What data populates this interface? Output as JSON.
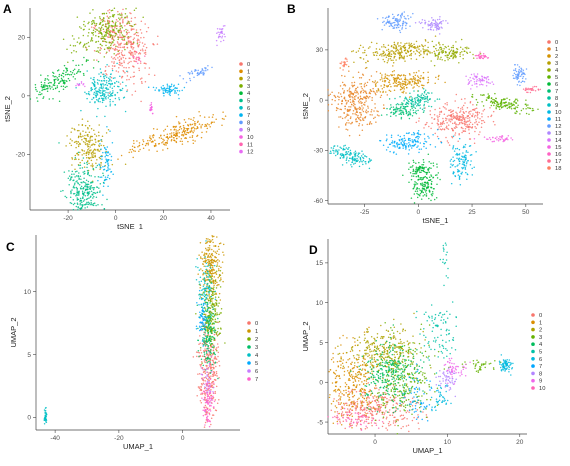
{
  "chart_data": [
    {
      "panel": "A",
      "type": "scatter",
      "xlabel": "tSNE_1",
      "ylabel": "tSNE_2",
      "xlim": [
        -36,
        48
      ],
      "ylim": [
        -39,
        30
      ],
      "xticks": [
        -20,
        0,
        20,
        40
      ],
      "yticks": [
        -20,
        0,
        20
      ],
      "legend_placement": "right",
      "series": [
        {
          "name": "0",
          "color": "#F8766D",
          "clusters": [
            {
              "x": 3,
              "y": 18,
              "sx": 5,
              "sy": 7,
              "n": 380,
              "rot": 30
            }
          ]
        },
        {
          "name": "1",
          "color": "#DE8C00",
          "clusters": [
            {
              "x": 25,
              "y": -13,
              "sx": 9,
              "sy": 1.8,
              "n": 250,
              "rot": 15
            }
          ]
        },
        {
          "name": "2",
          "color": "#B79F00",
          "clusters": [
            {
              "x": -12,
              "y": -17,
              "sx": 3.5,
              "sy": 4,
              "n": 190,
              "rot": 0
            }
          ]
        },
        {
          "name": "3",
          "color": "#7CAE00",
          "clusters": [
            {
              "x": -4,
              "y": 22,
              "sx": 7,
              "sy": 3.5,
              "n": 260,
              "rot": 20
            }
          ]
        },
        {
          "name": "4",
          "color": "#00BA38",
          "clusters": [
            {
              "x": -24,
              "y": 5,
              "sx": 6,
              "sy": 2,
              "n": 150,
              "rot": 25
            }
          ]
        },
        {
          "name": "5",
          "color": "#00C08B",
          "clusters": [
            {
              "x": -13,
              "y": -33,
              "sx": 3.5,
              "sy": 5,
              "n": 280,
              "rot": 0
            }
          ]
        },
        {
          "name": "6",
          "color": "#00BFC4",
          "clusters": [
            {
              "x": -5,
              "y": 2,
              "sx": 4,
              "sy": 3,
              "n": 200,
              "rot": 10
            }
          ]
        },
        {
          "name": "7",
          "color": "#00B4F0",
          "clusters": [
            {
              "x": 22,
              "y": 2,
              "sx": 3,
              "sy": 1,
              "n": 70,
              "rot": 0
            },
            {
              "x": -4,
              "y": -24,
              "sx": 1.5,
              "sy": 4,
              "n": 70,
              "rot": 0
            }
          ]
        },
        {
          "name": "8",
          "color": "#619CFF",
          "clusters": [
            {
              "x": 35,
              "y": 8,
              "sx": 3,
              "sy": 0.8,
              "n": 45,
              "rot": 15
            }
          ]
        },
        {
          "name": "9",
          "color": "#C77CFF",
          "clusters": [
            {
              "x": 44,
              "y": 21,
              "sx": 1,
              "sy": 2,
              "n": 30,
              "rot": 0
            }
          ]
        },
        {
          "name": "10",
          "color": "#F564E3",
          "clusters": [
            {
              "x": 15,
              "y": -4,
              "sx": 0.4,
              "sy": 1.2,
              "n": 20,
              "rot": 0
            }
          ]
        },
        {
          "name": "11",
          "color": "#FF64B0",
          "clusters": [
            {
              "x": 9,
              "y": 13,
              "sx": 1,
              "sy": 1,
              "n": 15,
              "rot": 0
            }
          ]
        },
        {
          "name": "12",
          "color": "#E76BF3",
          "clusters": [
            {
              "x": -15,
              "y": 4,
              "sx": 1,
              "sy": 0.6,
              "n": 12,
              "rot": 0
            }
          ]
        }
      ]
    },
    {
      "panel": "B",
      "type": "scatter",
      "xlabel": "tSNE_1",
      "ylabel": "tSNE_2",
      "xlim": [
        -42,
        58
      ],
      "ylim": [
        -62,
        55
      ],
      "xticks": [
        -25,
        0,
        25,
        50
      ],
      "yticks": [
        -60,
        -30,
        0,
        30
      ],
      "legend_placement": "right",
      "series": [
        {
          "name": "0",
          "color": "#F8766D",
          "clusters": [
            {
              "x": 18,
              "y": -12,
              "sx": 7,
              "sy": 5,
              "n": 280,
              "rot": 0
            }
          ]
        },
        {
          "name": "1",
          "color": "#E88526",
          "clusters": [
            {
              "x": -30,
              "y": -2,
              "sx": 6,
              "sy": 8,
              "n": 300,
              "rot": 0
            }
          ]
        },
        {
          "name": "2",
          "color": "#D39200",
          "clusters": [
            {
              "x": -8,
              "y": 11,
              "sx": 7,
              "sy": 3,
              "n": 200,
              "rot": 5
            }
          ]
        },
        {
          "name": "3",
          "color": "#B79F00",
          "clusters": [
            {
              "x": -8,
              "y": 29,
              "sx": 9,
              "sy": 3,
              "n": 230,
              "rot": 5
            }
          ]
        },
        {
          "name": "4",
          "color": "#93AA00",
          "clusters": [
            {
              "x": 15,
              "y": 28,
              "sx": 5,
              "sy": 3,
              "n": 120,
              "rot": 0
            }
          ]
        },
        {
          "name": "5",
          "color": "#5EB300",
          "clusters": [
            {
              "x": 40,
              "y": -2,
              "sx": 7,
              "sy": 2,
              "n": 150,
              "rot": -15
            }
          ]
        },
        {
          "name": "6",
          "color": "#00BA38",
          "clusters": [
            {
              "x": 3,
              "y": -52,
              "sx": 3,
              "sy": 4,
              "n": 120,
              "rot": 0
            },
            {
              "x": 1,
              "y": -42,
              "sx": 3,
              "sy": 3,
              "n": 90,
              "rot": 0
            }
          ]
        },
        {
          "name": "7",
          "color": "#00BF74",
          "clusters": [
            {
              "x": -8,
              "y": -6,
              "sx": 4,
              "sy": 2,
              "n": 90,
              "rot": 0
            }
          ]
        },
        {
          "name": "8",
          "color": "#00C19F",
          "clusters": [
            {
              "x": 0,
              "y": 0,
              "sx": 4,
              "sy": 2.5,
              "n": 110,
              "rot": 0
            }
          ]
        },
        {
          "name": "9",
          "color": "#00BFC4",
          "clusters": [
            {
              "x": -32,
              "y": -33,
              "sx": 6,
              "sy": 2,
              "n": 140,
              "rot": -25
            }
          ]
        },
        {
          "name": "10",
          "color": "#00B9E3",
          "clusters": [
            {
              "x": 20,
              "y": -36,
              "sx": 2.5,
              "sy": 5,
              "n": 110,
              "rot": 0
            }
          ]
        },
        {
          "name": "11",
          "color": "#00ADFA",
          "clusters": [
            {
              "x": -5,
              "y": -25,
              "sx": 6,
              "sy": 3,
              "n": 140,
              "rot": 10
            }
          ]
        },
        {
          "name": "12",
          "color": "#619CFF",
          "clusters": [
            {
              "x": -10,
              "y": 47,
              "sx": 3,
              "sy": 2.5,
              "n": 100,
              "rot": 0
            },
            {
              "x": 47,
              "y": 15,
              "sx": 1.5,
              "sy": 3,
              "n": 60,
              "rot": 0
            }
          ]
        },
        {
          "name": "13",
          "color": "#AE87FF",
          "clusters": [
            {
              "x": 7,
              "y": 45,
              "sx": 3,
              "sy": 2,
              "n": 70,
              "rot": 0
            }
          ]
        },
        {
          "name": "14",
          "color": "#DB72FB",
          "clusters": [
            {
              "x": 28,
              "y": 12,
              "sx": 2.5,
              "sy": 2,
              "n": 60,
              "rot": 0
            }
          ]
        },
        {
          "name": "15",
          "color": "#F564E3",
          "clusters": [
            {
              "x": 38,
              "y": -23,
              "sx": 3,
              "sy": 1,
              "n": 40,
              "rot": 0
            }
          ]
        },
        {
          "name": "16",
          "color": "#FF61C3",
          "clusters": [
            {
              "x": 30,
              "y": 26,
              "sx": 2,
              "sy": 1,
              "n": 30,
              "rot": 0
            }
          ]
        },
        {
          "name": "17",
          "color": "#FF6C91",
          "clusters": [
            {
              "x": 53,
              "y": 6,
              "sx": 2,
              "sy": 0.8,
              "n": 30,
              "rot": 0
            }
          ]
        },
        {
          "name": "18",
          "color": "#FF7F60",
          "clusters": [
            {
              "x": -34,
              "y": 22,
              "sx": 1,
              "sy": 2,
              "n": 20,
              "rot": 0
            }
          ]
        }
      ]
    },
    {
      "panel": "C",
      "type": "scatter",
      "xlabel": "UMAP_1",
      "ylabel": "UMAP_2",
      "xlim": [
        -46,
        18
      ],
      "ylim": [
        -1,
        14.5
      ],
      "xticks": [
        -40,
        -20,
        0
      ],
      "yticks": [
        0,
        5,
        10
      ],
      "legend_placement": "right",
      "series": [
        {
          "name": "0",
          "color": "#F8766D",
          "clusters": [
            {
              "x": 8,
              "y": 4,
              "sx": 1.5,
              "sy": 2,
              "n": 320,
              "rot": 0
            }
          ]
        },
        {
          "name": "1",
          "color": "#CD9600",
          "clusters": [
            {
              "x": 9,
              "y": 12,
              "sx": 1.6,
              "sy": 1.3,
              "n": 250,
              "rot": 0
            }
          ]
        },
        {
          "name": "2",
          "color": "#7CAE00",
          "clusters": [
            {
              "x": 9,
              "y": 8,
              "sx": 1.5,
              "sy": 1.5,
              "n": 220,
              "rot": 0
            }
          ]
        },
        {
          "name": "3",
          "color": "#00BE67",
          "clusters": [
            {
              "x": 8,
              "y": 6.5,
              "sx": 1.2,
              "sy": 1.5,
              "n": 150,
              "rot": 0
            }
          ]
        },
        {
          "name": "4",
          "color": "#00BFC4",
          "clusters": [
            {
              "x": 7,
              "y": 10,
              "sx": 1.2,
              "sy": 1.2,
              "n": 90,
              "rot": 0
            },
            {
              "x": -43,
              "y": 0.1,
              "sx": 0.25,
              "sy": 0.3,
              "n": 40,
              "rot": 0
            }
          ]
        },
        {
          "name": "5",
          "color": "#00A9FF",
          "clusters": [
            {
              "x": 6,
              "y": 8,
              "sx": 0.7,
              "sy": 1,
              "n": 60,
              "rot": 0
            }
          ]
        },
        {
          "name": "6",
          "color": "#C77CFF",
          "clusters": [
            {
              "x": 8,
              "y": 3,
              "sx": 1,
              "sy": 1,
              "n": 40,
              "rot": 0
            }
          ]
        },
        {
          "name": "7",
          "color": "#FF61CC",
          "clusters": [
            {
              "x": 8,
              "y": 1,
              "sx": 1,
              "sy": 1,
              "n": 80,
              "rot": 0
            }
          ]
        }
      ]
    },
    {
      "panel": "D",
      "type": "scatter",
      "xlabel": "UMAP_1",
      "ylabel": "UMAP_2",
      "xlim": [
        -6.5,
        21
      ],
      "ylim": [
        -6.5,
        18
      ],
      "xticks": [
        0,
        10,
        20
      ],
      "yticks": [
        -5,
        0,
        5,
        10,
        15
      ],
      "legend_placement": "right",
      "series": [
        {
          "name": "0",
          "color": "#F8766D",
          "clusters": [
            {
              "x": 0,
              "y": -3.5,
              "sx": 3,
              "sy": 1.3,
              "n": 320,
              "rot": 0
            }
          ]
        },
        {
          "name": "1",
          "color": "#DB8E00",
          "clusters": [
            {
              "x": -3,
              "y": 0,
              "sx": 2,
              "sy": 2.5,
              "n": 300,
              "rot": 0
            }
          ]
        },
        {
          "name": "2",
          "color": "#AEA200",
          "clusters": [
            {
              "x": 1,
              "y": 4,
              "sx": 2.5,
              "sy": 1.5,
              "n": 280,
              "rot": 0
            }
          ]
        },
        {
          "name": "3",
          "color": "#64B200",
          "clusters": [
            {
              "x": 4,
              "y": 0,
              "sx": 2,
              "sy": 2.5,
              "n": 250,
              "rot": 0
            },
            {
              "x": 14,
              "y": 2,
              "sx": 1.5,
              "sy": 0.4,
              "n": 40,
              "rot": 0
            }
          ]
        },
        {
          "name": "4",
          "color": "#00BD5C",
          "clusters": [
            {
              "x": 2,
              "y": 1,
              "sx": 1.8,
              "sy": 2,
              "n": 260,
              "rot": 0
            }
          ]
        },
        {
          "name": "5",
          "color": "#00C1A7",
          "clusters": [
            {
              "x": 9,
              "y": 6,
              "sx": 1.2,
              "sy": 2,
              "n": 90,
              "rot": 0
            },
            {
              "x": 9.5,
              "y": 15.5,
              "sx": 0.3,
              "sy": 1.5,
              "n": 20,
              "rot": 0
            }
          ]
        },
        {
          "name": "6",
          "color": "#00BADE",
          "clusters": [
            {
              "x": 18,
              "y": 2.2,
              "sx": 0.4,
              "sy": 0.4,
              "n": 70,
              "rot": 0
            },
            {
              "x": 9,
              "y": -2,
              "sx": 0.8,
              "sy": 1,
              "n": 40,
              "rot": 0
            }
          ]
        },
        {
          "name": "7",
          "color": "#00A6FF",
          "clusters": [
            {
              "x": 6,
              "y": -2,
              "sx": 1,
              "sy": 1.5,
              "n": 60,
              "rot": 0
            }
          ]
        },
        {
          "name": "8",
          "color": "#B385FF",
          "clusters": [
            {
              "x": 10,
              "y": 0.5,
              "sx": 0.8,
              "sy": 0.8,
              "n": 50,
              "rot": 0
            }
          ]
        },
        {
          "name": "9",
          "color": "#EF67EB",
          "clusters": [
            {
              "x": 11,
              "y": 1.5,
              "sx": 0.8,
              "sy": 0.8,
              "n": 50,
              "rot": 0
            }
          ]
        },
        {
          "name": "10",
          "color": "#FF63B6",
          "clusters": [
            {
              "x": -3,
              "y": -4.5,
              "sx": 1.5,
              "sy": 0.6,
              "n": 60,
              "rot": 0
            }
          ]
        }
      ]
    }
  ]
}
